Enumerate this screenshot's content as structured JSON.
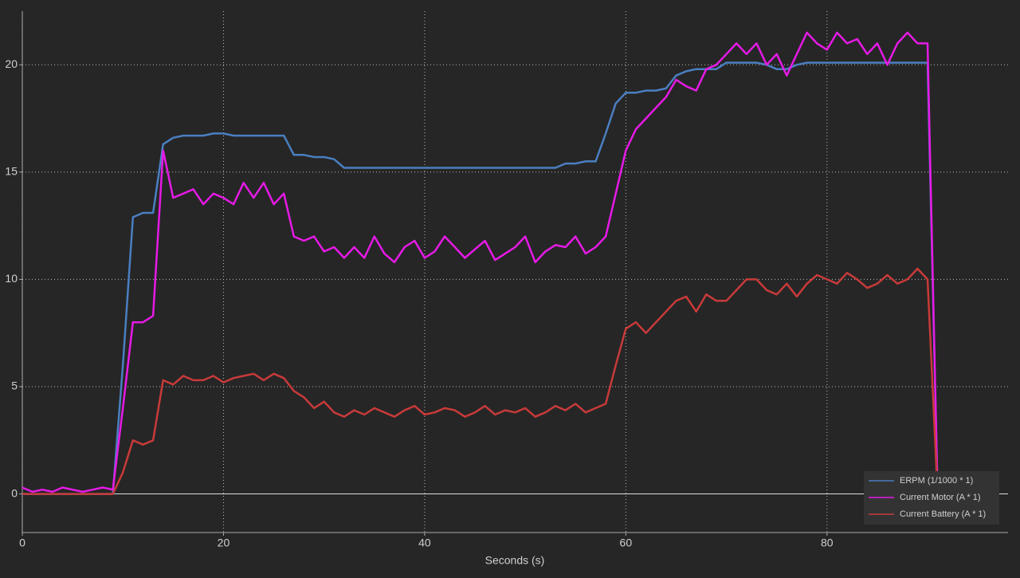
{
  "chart_data": {
    "type": "line",
    "x_label": "Seconds (s)",
    "x": [
      0,
      1,
      2,
      3,
      4,
      5,
      6,
      7,
      8,
      9,
      10,
      11,
      12,
      13,
      14,
      15,
      16,
      17,
      18,
      19,
      20,
      21,
      22,
      23,
      24,
      25,
      26,
      27,
      28,
      29,
      30,
      31,
      32,
      33,
      34,
      35,
      36,
      37,
      38,
      39,
      40,
      41,
      42,
      43,
      44,
      45,
      46,
      47,
      48,
      49,
      50,
      51,
      52,
      53,
      54,
      55,
      56,
      57,
      58,
      59,
      60,
      61,
      62,
      63,
      64,
      65,
      66,
      67,
      68,
      69,
      70,
      71,
      72,
      73,
      74,
      75,
      76,
      77,
      78,
      79,
      80,
      81,
      82,
      83,
      84,
      85,
      86,
      87,
      88,
      89,
      90,
      91,
      92
    ],
    "series": [
      {
        "name": "ERPM (1/1000 * 1)",
        "color": "#4a7fc1",
        "values": [
          0,
          0,
          0,
          0,
          0,
          0,
          0,
          0,
          0,
          0,
          6,
          12.9,
          13.1,
          13.1,
          16.3,
          16.6,
          16.7,
          16.7,
          16.7,
          16.8,
          16.8,
          16.7,
          16.7,
          16.7,
          16.7,
          16.7,
          16.7,
          15.8,
          15.8,
          15.7,
          15.7,
          15.6,
          15.2,
          15.2,
          15.2,
          15.2,
          15.2,
          15.2,
          15.2,
          15.2,
          15.2,
          15.2,
          15.2,
          15.2,
          15.2,
          15.2,
          15.2,
          15.2,
          15.2,
          15.2,
          15.2,
          15.2,
          15.2,
          15.2,
          15.4,
          15.4,
          15.5,
          15.5,
          16.8,
          18.2,
          18.7,
          18.7,
          18.8,
          18.8,
          18.9,
          19.5,
          19.7,
          19.8,
          19.8,
          19.8,
          20.1,
          20.1,
          20.1,
          20.1,
          20,
          19.8,
          19.8,
          20,
          20.1,
          20.1,
          20.1,
          20.1,
          20.1,
          20.1,
          20.1,
          20.1,
          20.1,
          20.1,
          20.1,
          20.1,
          20.1,
          0,
          0
        ]
      },
      {
        "name": "Current Motor (A * 1)",
        "color": "#e61ae6",
        "values": [
          0.3,
          0.1,
          0.2,
          0.1,
          0.3,
          0.2,
          0.1,
          0.2,
          0.3,
          0.2,
          4,
          8,
          8,
          8.3,
          16,
          13.8,
          14,
          14.2,
          13.5,
          14,
          13.8,
          13.5,
          14.5,
          13.8,
          14.5,
          13.5,
          14,
          12,
          11.8,
          12,
          11.3,
          11.5,
          11,
          11.5,
          11,
          12,
          11.2,
          10.8,
          11.5,
          11.8,
          11,
          11.3,
          12,
          11.5,
          11,
          11.4,
          11.8,
          10.9,
          11.2,
          11.5,
          12,
          10.8,
          11.3,
          11.6,
          11.5,
          12,
          11.2,
          11.5,
          12,
          14,
          16,
          17,
          17.5,
          18,
          18.5,
          19.3,
          19,
          18.8,
          19.8,
          20,
          20.5,
          21,
          20.5,
          21,
          20,
          20.5,
          19.5,
          20.5,
          21.5,
          21,
          20.7,
          21.5,
          21,
          21.2,
          20.5,
          21,
          20,
          21,
          21.5,
          21,
          21,
          0,
          0.3
        ]
      },
      {
        "name": "Current Battery (A * 1)",
        "color": "#c83a3a",
        "values": [
          0,
          0,
          0,
          0,
          0,
          0,
          0,
          0,
          0,
          0,
          1,
          2.5,
          2.3,
          2.5,
          5.3,
          5.1,
          5.5,
          5.3,
          5.3,
          5.5,
          5.2,
          5.4,
          5.5,
          5.6,
          5.3,
          5.6,
          5.4,
          4.8,
          4.5,
          4,
          4.3,
          3.8,
          3.6,
          3.9,
          3.7,
          4,
          3.8,
          3.6,
          3.9,
          4.1,
          3.7,
          3.8,
          4,
          3.9,
          3.6,
          3.8,
          4.1,
          3.7,
          3.9,
          3.8,
          4,
          3.6,
          3.8,
          4.1,
          3.9,
          4.2,
          3.8,
          4,
          4.2,
          6,
          7.7,
          8,
          7.5,
          8,
          8.5,
          9,
          9.2,
          8.5,
          9.3,
          9,
          9,
          9.5,
          10,
          10,
          9.5,
          9.3,
          9.8,
          9.2,
          9.8,
          10.2,
          10,
          9.8,
          10.3,
          10,
          9.6,
          9.8,
          10.2,
          9.8,
          10,
          10.5,
          10,
          0,
          0
        ]
      }
    ],
    "xlim": [
      0,
      98
    ],
    "xticks": [
      0,
      20,
      40,
      60,
      80
    ],
    "ylim": [
      -1.8,
      22.5
    ],
    "yticks": [
      0,
      5,
      10,
      15,
      20
    ],
    "grid": true,
    "legend": "bottom-right"
  }
}
